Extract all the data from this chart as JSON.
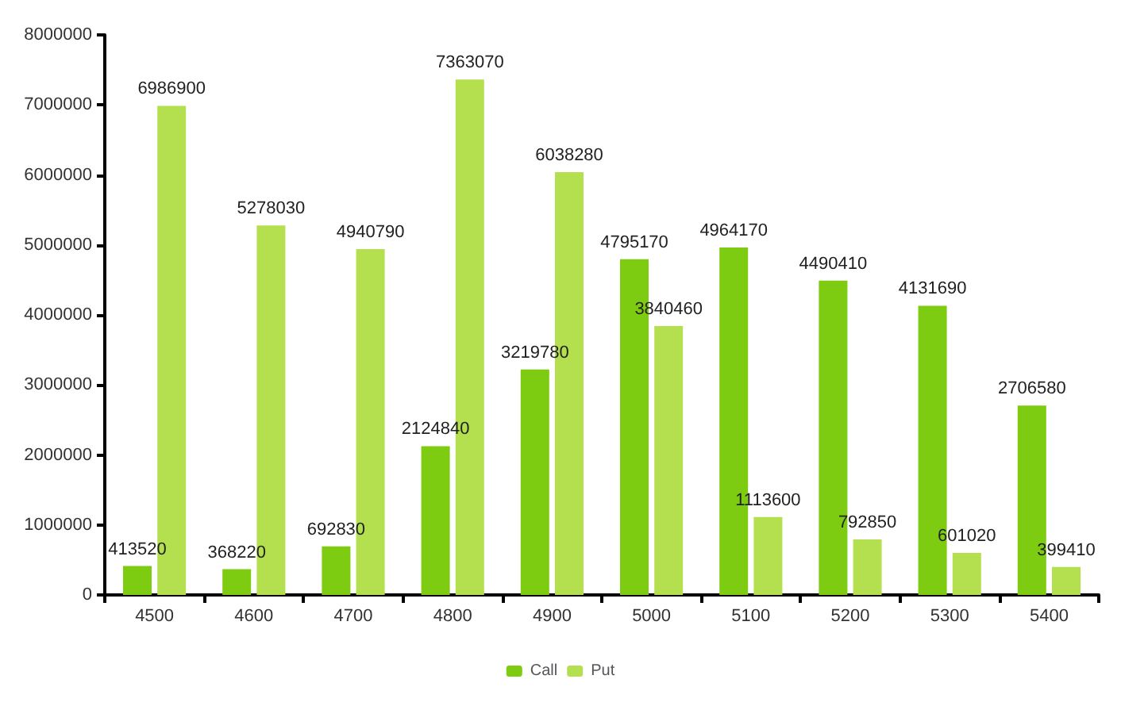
{
  "chart_data": {
    "type": "bar",
    "categories": [
      "4500",
      "4600",
      "4700",
      "4800",
      "4900",
      "5000",
      "5100",
      "5200",
      "5300",
      "5400"
    ],
    "series": [
      {
        "name": "Call",
        "color": "#7dcc12",
        "values": [
          413520,
          368220,
          692830,
          2124840,
          3219780,
          4795170,
          4964170,
          4490410,
          4131690,
          2706580
        ]
      },
      {
        "name": "Put",
        "color": "#b4df4e",
        "values": [
          6986900,
          5278030,
          4940790,
          7363070,
          6038280,
          3840460,
          1113600,
          792850,
          601020,
          399410
        ]
      }
    ],
    "ylim": [
      0,
      8000000
    ],
    "yticks": [
      0,
      1000000,
      2000000,
      3000000,
      4000000,
      5000000,
      6000000,
      7000000,
      8000000
    ],
    "data_labels": true,
    "grid": false,
    "legend": "bottom"
  }
}
